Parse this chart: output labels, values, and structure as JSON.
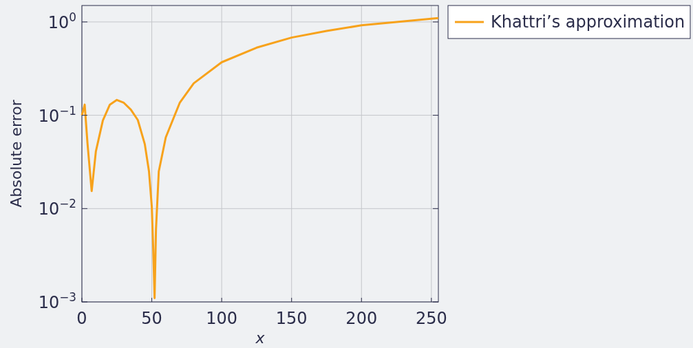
{
  "chart_data": {
    "type": "line",
    "xlabel": "x",
    "ylabel": "Absolute error",
    "log": "y",
    "grid": true,
    "legend": "top right",
    "xlim": [
      0,
      255
    ],
    "ylim": [
      0.001,
      1.5
    ],
    "xticks": [
      0,
      50,
      100,
      150,
      200,
      250
    ],
    "yticks": [
      {
        "value": 0.001,
        "label": "10$^{−3}$"
      },
      {
        "value": 0.01,
        "label": "10$^{−2}$"
      },
      {
        "value": 0.1,
        "label": "10$^{−1}$"
      },
      {
        "value": 1,
        "label": "10$^{0}$"
      }
    ],
    "series": [
      {
        "name": "Khattri’s approximation",
        "color": "#f7a21b",
        "x": [
          0,
          2,
          4,
          7,
          10,
          15,
          20,
          25,
          30,
          35,
          40,
          45,
          48,
          50,
          51,
          52,
          53,
          55,
          60,
          70,
          80,
          100,
          125,
          150,
          175,
          200,
          225,
          255
        ],
        "values": [
          0.1,
          0.13,
          0.05,
          0.0154,
          0.041,
          0.088,
          0.13,
          0.146,
          0.136,
          0.115,
          0.089,
          0.049,
          0.025,
          0.0105,
          0.0038,
          0.0011,
          0.006,
          0.025,
          0.058,
          0.136,
          0.22,
          0.37,
          0.53,
          0.68,
          0.8,
          0.92,
          1.0,
          1.1
        ]
      }
    ]
  }
}
